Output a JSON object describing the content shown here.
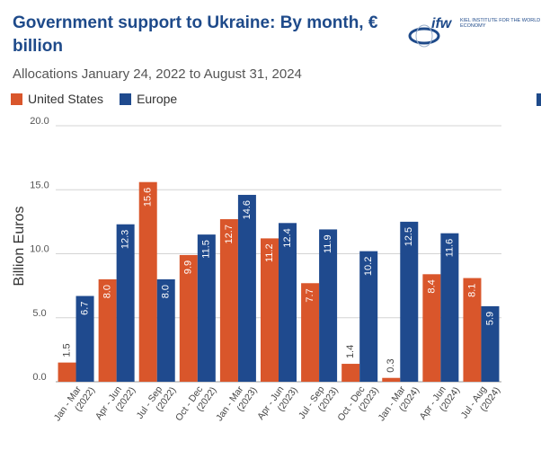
{
  "title": "Government support to Ukraine: By month, € billion",
  "subtitle": "Allocations January 24, 2022 to August 31, 2024",
  "logo": {
    "mark": "ifw",
    "text": "KIEL INSTITUTE FOR THE WORLD ECONOMY"
  },
  "colors": {
    "us": "#d9562b",
    "europe": "#1f4a8e",
    "title": "#1e4a8a"
  },
  "chart_data": {
    "type": "bar",
    "ylabel": "Billion Euros",
    "ylim": [
      0,
      20
    ],
    "yticks": [
      "0.0",
      "5.0",
      "10.0",
      "15.0",
      "20.0"
    ],
    "grid": true,
    "legend_position": "top-left",
    "categories": [
      "Jan - Mar (2022)",
      "Apr - Jun (2022)",
      "Jul - Sep (2022)",
      "Oct - Dec (2022)",
      "Jan - Mar (2023)",
      "Apr - Jun (2023)",
      "Jul - Sep (2023)",
      "Oct - Dec (2023)",
      "Jan - Mar (2024)",
      "Apr - Jun (2024)",
      "Jul - Aug (2024)"
    ],
    "series": [
      {
        "name": "United States",
        "values": [
          1.5,
          8.0,
          15.6,
          9.9,
          12.7,
          11.2,
          7.7,
          1.4,
          0.3,
          8.4,
          8.1
        ]
      },
      {
        "name": "Europe",
        "values": [
          6.7,
          12.3,
          8.0,
          11.5,
          14.6,
          12.4,
          11.9,
          10.2,
          12.5,
          11.6,
          5.9
        ]
      }
    ]
  }
}
